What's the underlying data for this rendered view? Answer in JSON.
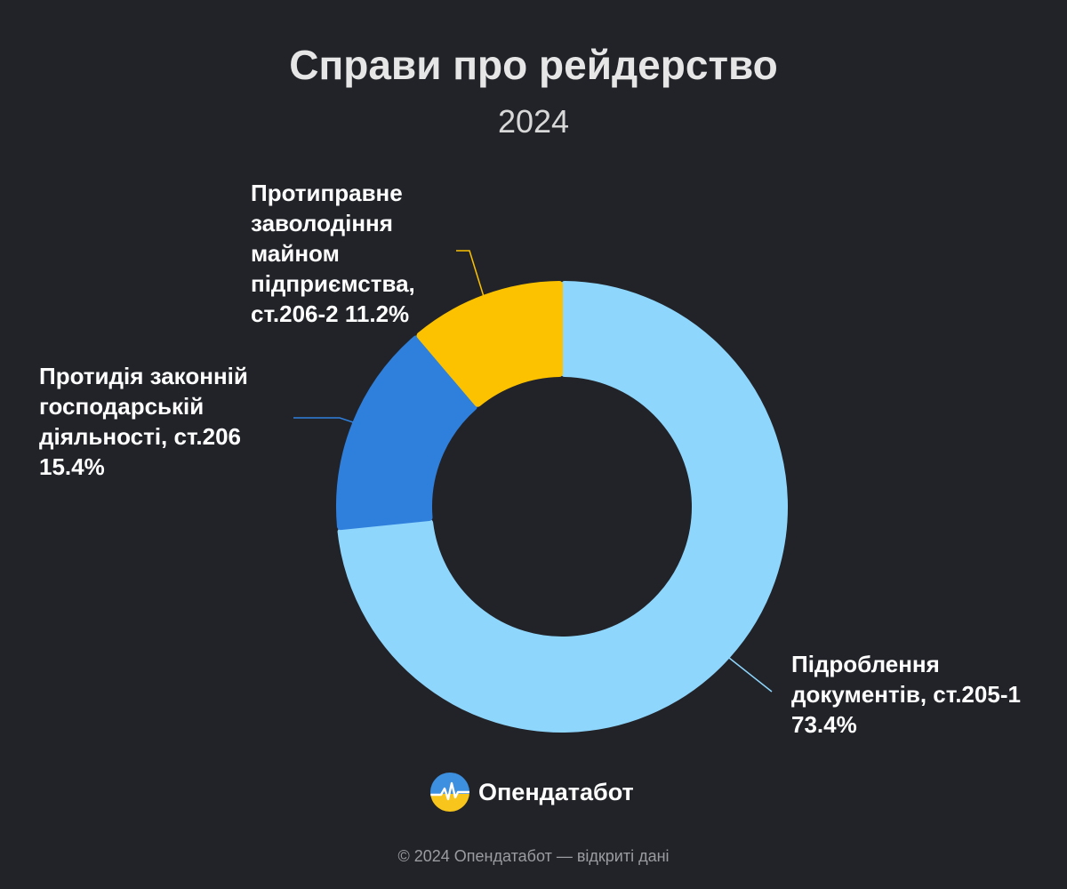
{
  "header": {
    "title": "Справи про рейдерство",
    "subtitle": "2024"
  },
  "chart_data": {
    "type": "pie",
    "variant": "donut",
    "title": "Справи про рейдерство",
    "subtitle": "2024",
    "series": [
      {
        "labels": [
          "Підроблення документів, ст.205-1",
          "Протидія законній господарській діяльності, ст.206",
          "Протиправне заволодіння майном підприємства, ст.206-2"
        ],
        "values": [
          73.4,
          15.4,
          11.2
        ],
        "colors": [
          "#8fd6fd",
          "#2f80dd",
          "#fcc200"
        ],
        "value_labels": [
          "Підроблення документів, ст.205-1 73.4%",
          "Протидія законній господарській діяльності, ст.206 15.4%",
          "Протиправне заволодіння майном підприємства, ст.206-2 11.2%"
        ]
      }
    ],
    "unit": "%",
    "legend": "none (labels next to slices)"
  },
  "brand": {
    "name": "Опендатабот",
    "logo_icon": "opendatabot-logo-icon"
  },
  "footer": {
    "text": "© 2024 Опендатабот — відкриті дані"
  },
  "colors": {
    "background": "#212328",
    "title": "#e6e6e6",
    "label_text": "#ffffff",
    "footer_text": "#9a9ca2"
  }
}
